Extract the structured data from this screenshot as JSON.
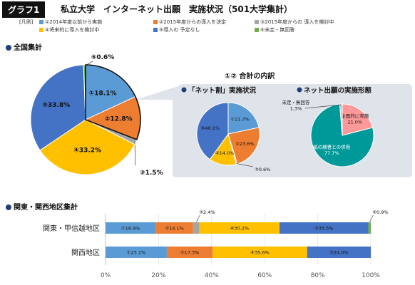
{
  "header": {
    "tag": "グラフ1",
    "title": "私立大学　インターネット出願　実施状況（501大学集計）"
  },
  "legend": {
    "prefix": "[凡例]",
    "items": [
      {
        "label": "①2014年度以前から実施",
        "color": "#5b9bd5"
      },
      {
        "label": "②2015年度からの導入を決定",
        "color": "#ed7d31"
      },
      {
        "label": "③2015年度からの 導入を検討中",
        "color": "#a5a5a5"
      },
      {
        "label": "④将来的に導入を検討中",
        "color": "#ffc000"
      },
      {
        "label": "⑤導入の 予定なし",
        "color": "#4472c4"
      },
      {
        "label": "⑥未定・無回答",
        "color": "#70ad47"
      }
    ]
  },
  "sections": {
    "national": "全国集計",
    "breakdown": "①② 合計の内訳",
    "net_discount": "「ネット割」実施状況",
    "net_form": "ネット出願の実施形態",
    "regional": "関東・関西地区集計"
  },
  "chart_data": [
    {
      "type": "pie",
      "id": "national",
      "labels": [
        "①18.1%",
        "②12.8%",
        "③1.5%",
        "④33.2%",
        "⑤33.8%",
        "⑥0.6%"
      ],
      "values": [
        18.1,
        12.8,
        1.5,
        33.2,
        33.8,
        0.6
      ],
      "colors": [
        "#5b9bd5",
        "#ed7d31",
        "#a5a5a5",
        "#ffc000",
        "#4472c4",
        "#70ad47"
      ]
    },
    {
      "type": "pie",
      "id": "net_discount",
      "title": "「ネット割」実施状況",
      "labels": [
        "①21.7%",
        "②23.6%",
        "③0.6%",
        "④14.0%",
        "⑤40.1%"
      ],
      "values": [
        21.7,
        23.6,
        0.6,
        14.0,
        40.1
      ],
      "colors": [
        "#5b9bd5",
        "#ed7d31",
        "#a5a5a5",
        "#ffc000",
        "#4472c4"
      ]
    },
    {
      "type": "pie",
      "id": "net_form",
      "title": "ネット出願の実施形態",
      "labels": [
        "全面的に実施\n21.0%",
        "紙の願書との併用\n77.7%",
        "未定・無回答\n1.3%"
      ],
      "values": [
        21.0,
        77.7,
        1.3
      ],
      "colors": [
        "#ff9999",
        "#00999a",
        "#bfbfbf"
      ]
    },
    {
      "type": "bar",
      "id": "regional",
      "orientation": "horizontal",
      "stacked": true,
      "categories": [
        "関東・甲信越地区",
        "関西地区"
      ],
      "series": [
        {
          "name": "①",
          "color": "#5b9bd5",
          "values": [
            18.9,
            23.1
          ],
          "labels": [
            "①18.9%",
            "①23.1%"
          ]
        },
        {
          "name": "②",
          "color": "#ed7d31",
          "values": [
            14.1,
            17.3
          ],
          "labels": [
            "②14.1%",
            "②17.3%"
          ]
        },
        {
          "name": "③",
          "color": "#a5a5a5",
          "values": [
            2.4,
            0
          ],
          "labels": [
            "③2.4%",
            ""
          ]
        },
        {
          "name": "④",
          "color": "#ffc000",
          "values": [
            30.2,
            35.6
          ],
          "labels": [
            "④30.2%",
            "④35.6%"
          ]
        },
        {
          "name": "⑤",
          "color": "#4472c4",
          "values": [
            33.5,
            24.0
          ],
          "labels": [
            "⑤33.5%",
            "⑤24.0%"
          ]
        },
        {
          "name": "⑥",
          "color": "#70ad47",
          "values": [
            0.9,
            0
          ],
          "labels": [
            "⑥0.9%",
            ""
          ]
        }
      ],
      "xticks": [
        "0%",
        "20%",
        "40%",
        "60%",
        "80%",
        "100%"
      ],
      "xlim": [
        0,
        100
      ]
    }
  ]
}
